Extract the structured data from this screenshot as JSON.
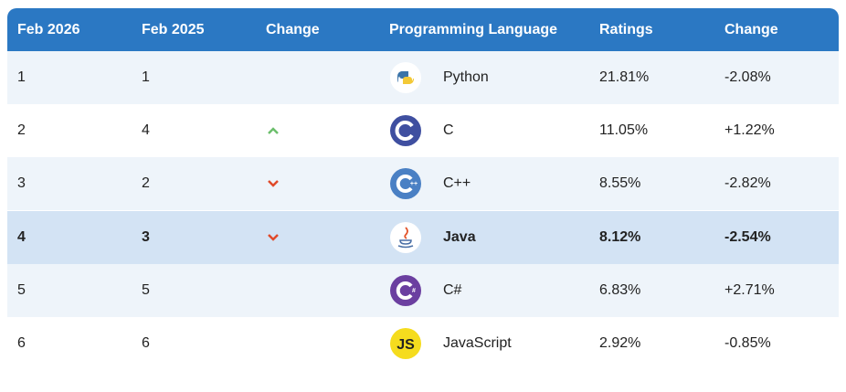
{
  "table": {
    "header": [
      "Feb 2026",
      "Feb 2025",
      "Change",
      "Programming Language",
      "Ratings",
      "Change"
    ],
    "rows": [
      {
        "feb2026": "1",
        "feb2025": "1",
        "language": "Python",
        "rating": "21.81%",
        "change": "-2.08%"
      },
      {
        "feb2026": "2",
        "feb2025": "4",
        "language": "C",
        "rating": "11.05%",
        "change": "+1.22%"
      },
      {
        "feb2026": "3",
        "feb2025": "2",
        "language": "C++",
        "rating": "8.55%",
        "change": "-2.82%"
      },
      {
        "feb2026": "4",
        "feb2025": "3",
        "language": "Java",
        "rating": "8.12%",
        "change": "-2.54%"
      },
      {
        "feb2026": "5",
        "feb2025": "5",
        "language": "C#",
        "rating": "6.83%",
        "change": "+2.71%"
      },
      {
        "feb2026": "6",
        "feb2025": "6",
        "language": "JavaScript",
        "rating": "2.92%",
        "change": "-0.85%",
        "icon_text": "JS"
      }
    ]
  }
}
